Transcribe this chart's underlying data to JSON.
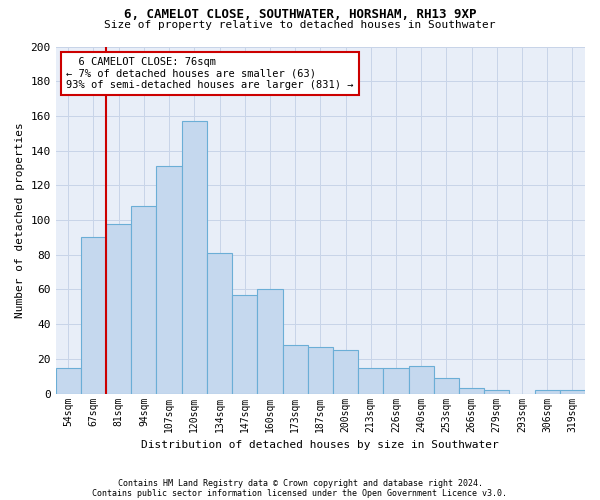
{
  "title_line1": "6, CAMELOT CLOSE, SOUTHWATER, HORSHAM, RH13 9XP",
  "title_line2": "Size of property relative to detached houses in Southwater",
  "xlabel": "Distribution of detached houses by size in Southwater",
  "ylabel": "Number of detached properties",
  "categories": [
    "54sqm",
    "67sqm",
    "81sqm",
    "94sqm",
    "107sqm",
    "120sqm",
    "134sqm",
    "147sqm",
    "160sqm",
    "173sqm",
    "187sqm",
    "200sqm",
    "213sqm",
    "226sqm",
    "240sqm",
    "253sqm",
    "266sqm",
    "279sqm",
    "293sqm",
    "306sqm",
    "319sqm"
  ],
  "values": [
    15,
    90,
    98,
    108,
    131,
    157,
    81,
    57,
    60,
    28,
    27,
    25,
    15,
    15,
    16,
    9,
    3,
    2,
    0,
    2,
    2
  ],
  "bar_color": "#c5d8ee",
  "bar_edge_color": "#6baed6",
  "ylim": [
    0,
    200
  ],
  "yticks": [
    0,
    20,
    40,
    60,
    80,
    100,
    120,
    140,
    160,
    180,
    200
  ],
  "annotation_text": "  6 CAMELOT CLOSE: 76sqm\n← 7% of detached houses are smaller (63)\n93% of semi-detached houses are larger (831) →",
  "annotation_box_color": "#ffffff",
  "annotation_box_edge_color": "#cc0000",
  "vline_color": "#cc0000",
  "vline_x": 1.5,
  "footnote1": "Contains HM Land Registry data © Crown copyright and database right 2024.",
  "footnote2": "Contains public sector information licensed under the Open Government Licence v3.0.",
  "grid_color": "#c8d4e8",
  "background_color": "#e8eef8"
}
